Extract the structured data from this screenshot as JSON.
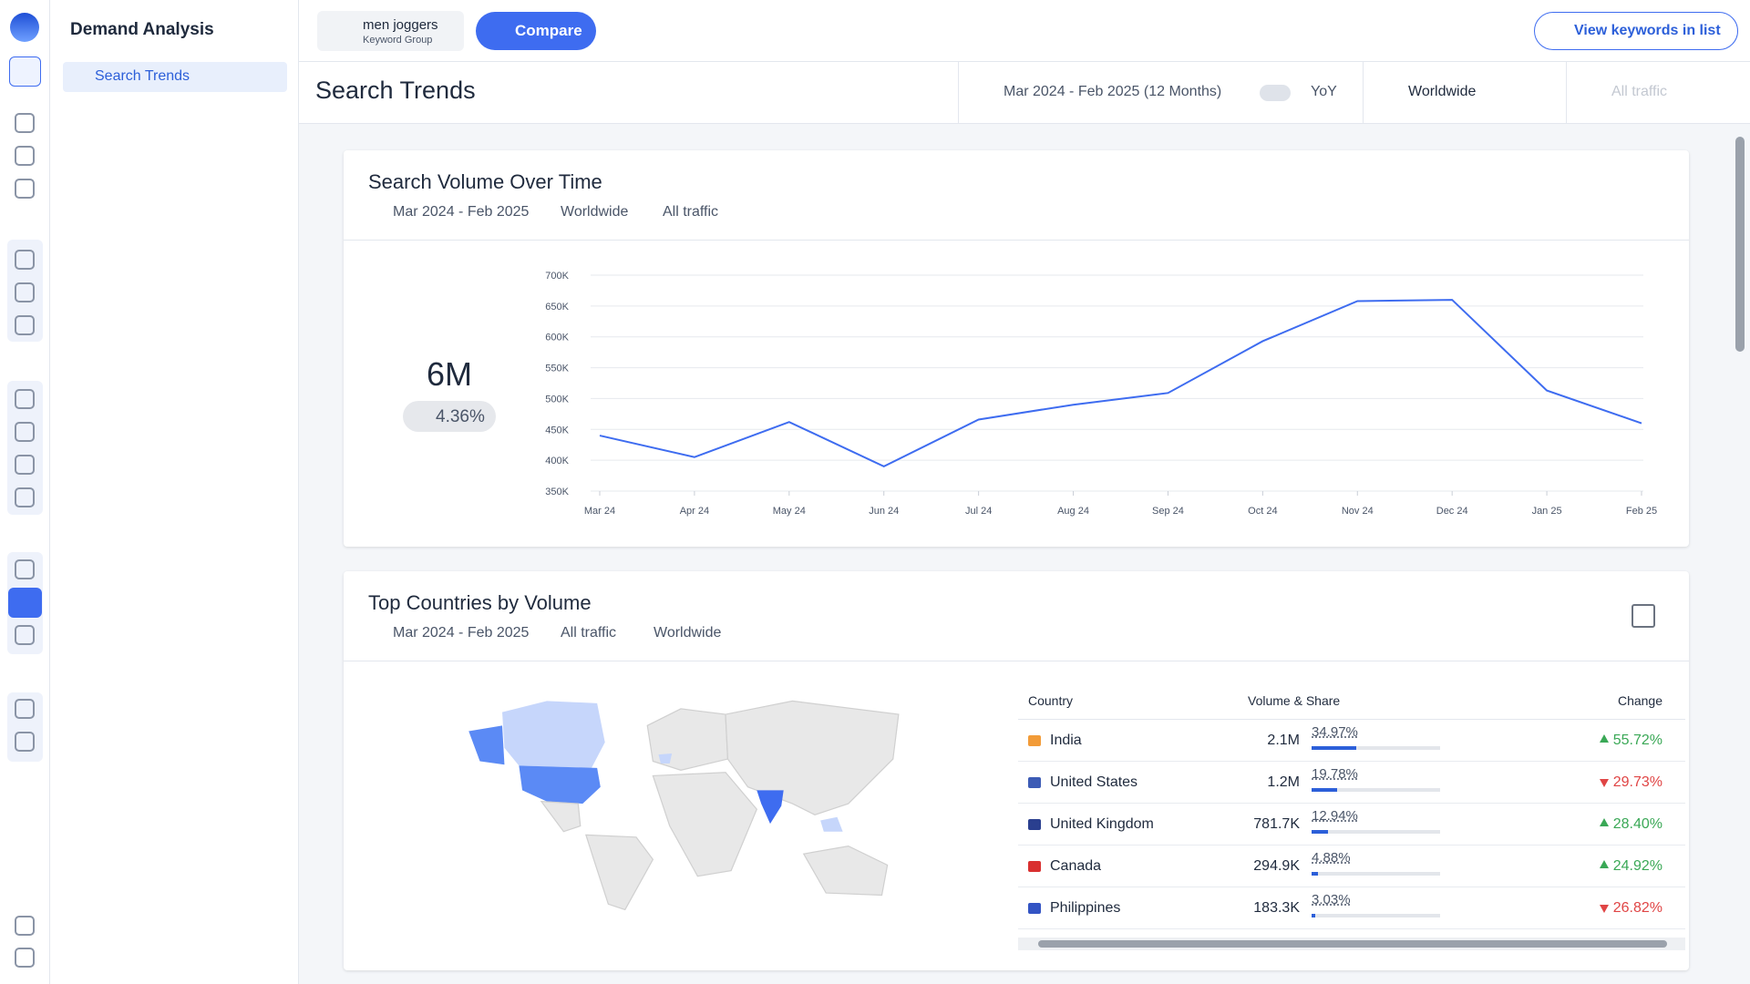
{
  "nav": {
    "section": "Demand Analysis",
    "item": "Search Trends"
  },
  "header": {
    "keyword": "men joggers",
    "keyword_type": "Keyword Group",
    "compare": "Compare",
    "view_keywords": "View keywords in list"
  },
  "toolbar": {
    "title": "Search Trends",
    "date_range": "Mar 2024 - Feb 2025 (12 Months)",
    "comparison": "YoY",
    "region": "Worldwide",
    "traffic": "All traffic"
  },
  "volume_card": {
    "title": "Search Volume Over Time",
    "date": "Mar 2024 - Feb 2025",
    "region": "Worldwide",
    "traffic": "All traffic",
    "total": "6M",
    "change": "4.36%"
  },
  "chart_data": {
    "type": "line",
    "categories": [
      "Mar 24",
      "Apr 24",
      "May 24",
      "Jun 24",
      "Jul 24",
      "Aug 24",
      "Sep 24",
      "Oct 24",
      "Nov 24",
      "Dec 24",
      "Jan 25",
      "Feb 25"
    ],
    "values": [
      440000,
      405000,
      462000,
      390000,
      466000,
      490000,
      509000,
      593000,
      658000,
      660000,
      513000,
      460000
    ],
    "color": "#3e6cf0",
    "ylim": [
      350000,
      700000
    ],
    "yticks": [
      {
        "value": 350000,
        "label": "350K"
      },
      {
        "value": 400000,
        "label": "400K"
      },
      {
        "value": 450000,
        "label": "450K"
      },
      {
        "value": 500000,
        "label": "500K"
      },
      {
        "value": 550000,
        "label": "550K"
      },
      {
        "value": 600000,
        "label": "600K"
      },
      {
        "value": 650000,
        "label": "650K"
      },
      {
        "value": 700000,
        "label": "700K"
      }
    ],
    "grid": true
  },
  "countries_card": {
    "title": "Top Countries by Volume",
    "date": "Mar 2024 - Feb 2025",
    "traffic": "All traffic",
    "region": "Worldwide",
    "columns": [
      "Country",
      "Volume & Share",
      "Change"
    ],
    "rows": [
      {
        "country": "India",
        "volume": "2.1M",
        "share": 34.97,
        "share_label": "34.97%",
        "change": "55.72%",
        "direction": "up"
      },
      {
        "country": "United States",
        "volume": "1.2M",
        "share": 19.78,
        "share_label": "19.78%",
        "change": "29.73%",
        "direction": "down"
      },
      {
        "country": "United Kingdom",
        "volume": "781.7K",
        "share": 12.94,
        "share_label": "12.94%",
        "change": "28.40%",
        "direction": "up"
      },
      {
        "country": "Canada",
        "volume": "294.9K",
        "share": 4.88,
        "share_label": "4.88%",
        "change": "24.92%",
        "direction": "up"
      },
      {
        "country": "Philippines",
        "volume": "183.3K",
        "share": 3.03,
        "share_label": "3.03%",
        "change": "26.82%",
        "direction": "down"
      }
    ]
  }
}
